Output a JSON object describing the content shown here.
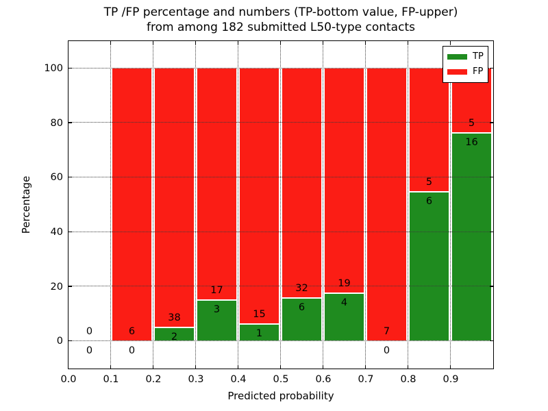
{
  "title": {
    "line1": "TP /FP percentage and numbers (TP-bottom value, FP-upper)",
    "line2": "from among 182 submitted L50-type contacts"
  },
  "legend": {
    "position": "upper right",
    "items": [
      {
        "label": "TP",
        "color": "#1f8b1f"
      },
      {
        "label": "FP",
        "color": "#fb1d15"
      }
    ]
  },
  "chart_data": {
    "type": "bar",
    "stacked": true,
    "units": "percent of bin total",
    "title": "TP /FP percentage and numbers (TP-bottom value, FP-upper) from among 182 submitted L50-type contacts",
    "xlabel": "Predicted probability",
    "ylabel": "Percentage",
    "xlim": [
      0.0,
      1.0
    ],
    "ylim": [
      -10,
      110
    ],
    "grid": "dotted",
    "total_contacts": 182,
    "yticks": [
      0,
      20,
      40,
      60,
      80,
      100
    ],
    "ytick_labels": [
      "0",
      "20",
      "40",
      "60",
      "80",
      "100"
    ],
    "xticks": [
      0.0,
      0.1,
      0.2,
      0.3,
      0.4,
      0.5,
      0.6,
      0.7,
      0.8,
      0.9
    ],
    "xtick_labels": [
      "0.0",
      "0.1",
      "0.2",
      "0.3",
      "0.4",
      "0.5",
      "0.6",
      "0.7",
      "0.8",
      "0.9"
    ],
    "series": [
      {
        "name": "TP",
        "color": "#1f8b1f"
      },
      {
        "name": "FP",
        "color": "#fb1d15"
      }
    ],
    "label_offset_pct": 3.5,
    "bins": [
      {
        "range": [
          0.0,
          0.1
        ],
        "tp_count": 0,
        "fp_count": 0,
        "tp_pct": 0,
        "fp_pct": 0
      },
      {
        "range": [
          0.1,
          0.2
        ],
        "tp_count": 0,
        "fp_count": 6,
        "tp_pct": 0,
        "fp_pct": 100
      },
      {
        "range": [
          0.2,
          0.3
        ],
        "tp_count": 2,
        "fp_count": 38,
        "tp_pct": 5.0,
        "fp_pct": 95.0
      },
      {
        "range": [
          0.3,
          0.4
        ],
        "tp_count": 3,
        "fp_count": 17,
        "tp_pct": 15.0,
        "fp_pct": 85.0
      },
      {
        "range": [
          0.4,
          0.5
        ],
        "tp_count": 1,
        "fp_count": 15,
        "tp_pct": 6.25,
        "fp_pct": 93.75
      },
      {
        "range": [
          0.5,
          0.6
        ],
        "tp_count": 6,
        "fp_count": 32,
        "tp_pct": 15.79,
        "fp_pct": 84.21
      },
      {
        "range": [
          0.6,
          0.7
        ],
        "tp_count": 4,
        "fp_count": 19,
        "tp_pct": 17.39,
        "fp_pct": 82.61
      },
      {
        "range": [
          0.7,
          0.8
        ],
        "tp_count": 0,
        "fp_count": 7,
        "tp_pct": 0,
        "fp_pct": 100
      },
      {
        "range": [
          0.8,
          0.9
        ],
        "tp_count": 6,
        "fp_count": 5,
        "tp_pct": 54.55,
        "fp_pct": 45.45
      },
      {
        "range": [
          0.9,
          1.0
        ],
        "tp_count": 16,
        "fp_count": 5,
        "tp_pct": 76.19,
        "fp_pct": 23.81
      }
    ]
  }
}
